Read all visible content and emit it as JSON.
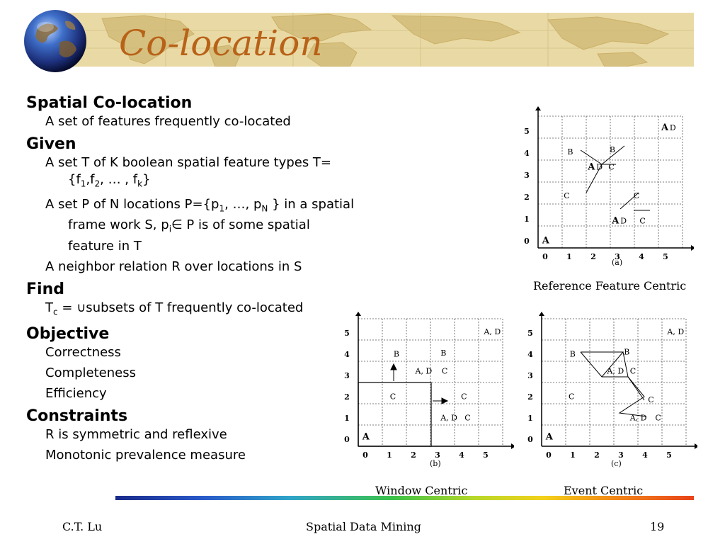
{
  "slide": {
    "title": "Co-location",
    "sections": [
      {
        "heading": "Spatial Co-location",
        "items": [
          "A set of features frequently co-located"
        ]
      },
      {
        "heading": "Given",
        "items": [
          "A set T of K boolean spatial feature types T={f1,f2, … , fk}",
          "A set P of N locations P={p1, …, pN } in a spatial frame work S, pi∈ P is of some spatial feature in T",
          "A neighbor relation R over locations in S"
        ]
      },
      {
        "heading": "Find",
        "items": [
          "Tc = ∪subsets of T frequently co-located"
        ]
      },
      {
        "heading": "Objective",
        "items": [
          "Correctness",
          "Completeness",
          "Efficiency"
        ]
      },
      {
        "heading": "Constraints",
        "items": [
          "R is symmetric and reflexive",
          "Monotonic prevalence measure"
        ]
      }
    ]
  },
  "figures": {
    "a": {
      "label": "(a)",
      "caption": "Reference Feature Centric",
      "x_ticks": [
        "0",
        "1",
        "2",
        "3",
        "4",
        "5"
      ],
      "y_ticks": [
        "0",
        "1",
        "2",
        "3",
        "4",
        "5"
      ],
      "points": [
        {
          "label": "A",
          "x": 5.0,
          "y": 5.1
        },
        {
          "label": "D",
          "x": 5.35,
          "y": 5.1
        },
        {
          "label": "B",
          "x": 1.1,
          "y": 4.0
        },
        {
          "label": "B",
          "x": 2.85,
          "y": 4.1
        },
        {
          "label": "A",
          "x": 1.95,
          "y": 3.3
        },
        {
          "label": "D",
          "x": 2.3,
          "y": 3.3
        },
        {
          "label": "C",
          "x": 2.8,
          "y": 3.3
        },
        {
          "label": "C",
          "x": 0.95,
          "y": 2.0
        },
        {
          "label": "C",
          "x": 3.85,
          "y": 2.0
        },
        {
          "label": "A",
          "x": 2.95,
          "y": 0.85
        },
        {
          "label": "D",
          "x": 3.3,
          "y": 0.85
        },
        {
          "label": "C",
          "x": 4.1,
          "y": 0.85
        },
        {
          "label": "A",
          "x": 0.05,
          "y": -0.05
        }
      ]
    },
    "b": {
      "label": "(b)",
      "caption": "Window Centric",
      "x_ticks": [
        "0",
        "1",
        "2",
        "3",
        "4",
        "5"
      ],
      "y_ticks": [
        "0",
        "1",
        "2",
        "3",
        "4",
        "5"
      ],
      "points": [
        {
          "label": "A, D",
          "x": 5.1,
          "y": 5.0
        },
        {
          "label": "B",
          "x": 1.35,
          "y": 3.95
        },
        {
          "label": "B",
          "x": 3.3,
          "y": 4.0
        },
        {
          "label": "A, D",
          "x": 2.25,
          "y": 3.15
        },
        {
          "label": "C",
          "x": 3.35,
          "y": 3.15
        },
        {
          "label": "C",
          "x": 1.2,
          "y": 1.95
        },
        {
          "label": "C",
          "x": 4.15,
          "y": 1.95
        },
        {
          "label": "A, D",
          "x": 3.3,
          "y": 0.95
        },
        {
          "label": "C",
          "x": 4.3,
          "y": 0.95
        },
        {
          "label": "A",
          "x": 0.05,
          "y": 0.05
        }
      ]
    },
    "c": {
      "label": "(c)",
      "caption": "Event Centric",
      "x_ticks": [
        "0",
        "1",
        "2",
        "3",
        "4",
        "5"
      ],
      "y_ticks": [
        "0",
        "1",
        "2",
        "3",
        "4",
        "5"
      ],
      "points": [
        {
          "label": "A, D",
          "x": 5.1,
          "y": 5.0
        },
        {
          "label": "B",
          "x": 1.05,
          "y": 3.95
        },
        {
          "label": "B",
          "x": 3.3,
          "y": 4.05
        },
        {
          "label": "A, D",
          "x": 2.6,
          "y": 3.15
        },
        {
          "label": "C",
          "x": 3.55,
          "y": 3.15
        },
        {
          "label": "C",
          "x": 1.0,
          "y": 1.95
        },
        {
          "label": "C",
          "x": 4.3,
          "y": 1.8
        },
        {
          "label": "A, D",
          "x": 3.55,
          "y": 0.95
        },
        {
          "label": "C",
          "x": 4.6,
          "y": 0.95
        },
        {
          "label": "A",
          "x": 0.05,
          "y": 0.05
        }
      ]
    }
  },
  "footer": {
    "author": "C.T. Lu",
    "course": "Spatial Data Mining",
    "page": "19"
  }
}
